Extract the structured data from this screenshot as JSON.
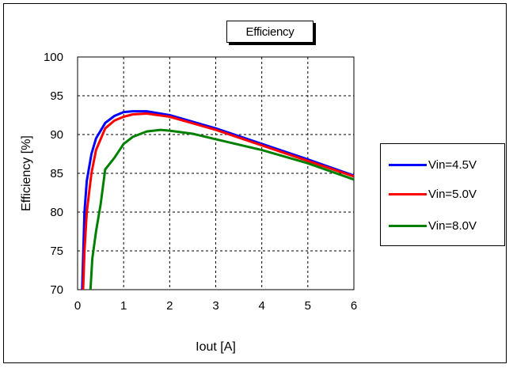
{
  "chart_data": {
    "type": "line",
    "title": "Efficiency",
    "xlabel": "Iout [A]",
    "ylabel": "Efficiency  [%]",
    "xlim": [
      0,
      6
    ],
    "ylim": [
      70,
      100
    ],
    "xticks": [
      "0",
      "1",
      "2",
      "3",
      "4",
      "5",
      "6"
    ],
    "yticks": [
      "70",
      "75",
      "80",
      "85",
      "90",
      "95",
      "100"
    ],
    "grid": true,
    "legend_position": "right",
    "series": [
      {
        "name": "Vin=4.5V",
        "color": "#0000ff",
        "x": [
          0.1,
          0.15,
          0.2,
          0.3,
          0.4,
          0.6,
          0.8,
          1.0,
          1.2,
          1.5,
          2.0,
          3.0,
          4.0,
          5.0,
          6.0
        ],
        "y": [
          70,
          80,
          84,
          87.5,
          89.5,
          91.5,
          92.4,
          92.9,
          93.0,
          93.0,
          92.5,
          90.8,
          88.8,
          86.8,
          84.7
        ]
      },
      {
        "name": "Vin=5.0V",
        "color": "#ff0000",
        "x": [
          0.12,
          0.15,
          0.2,
          0.3,
          0.4,
          0.6,
          0.8,
          1.0,
          1.2,
          1.5,
          2.0,
          3.0,
          4.0,
          5.0,
          6.0
        ],
        "y": [
          70,
          75,
          80,
          85,
          88,
          90.8,
          91.8,
          92.3,
          92.6,
          92.7,
          92.3,
          90.6,
          88.6,
          86.6,
          84.6
        ]
      },
      {
        "name": "Vin=8.0V",
        "color": "#008000",
        "x": [
          0.28,
          0.32,
          0.4,
          0.5,
          0.6,
          0.8,
          1.0,
          1.2,
          1.5,
          1.8,
          2.0,
          2.5,
          3.0,
          4.0,
          5.0,
          6.0
        ],
        "y": [
          70,
          74,
          77.5,
          81,
          85.5,
          87,
          88.8,
          89.7,
          90.4,
          90.6,
          90.5,
          90.1,
          89.4,
          88,
          86.3,
          84.2
        ]
      }
    ]
  }
}
